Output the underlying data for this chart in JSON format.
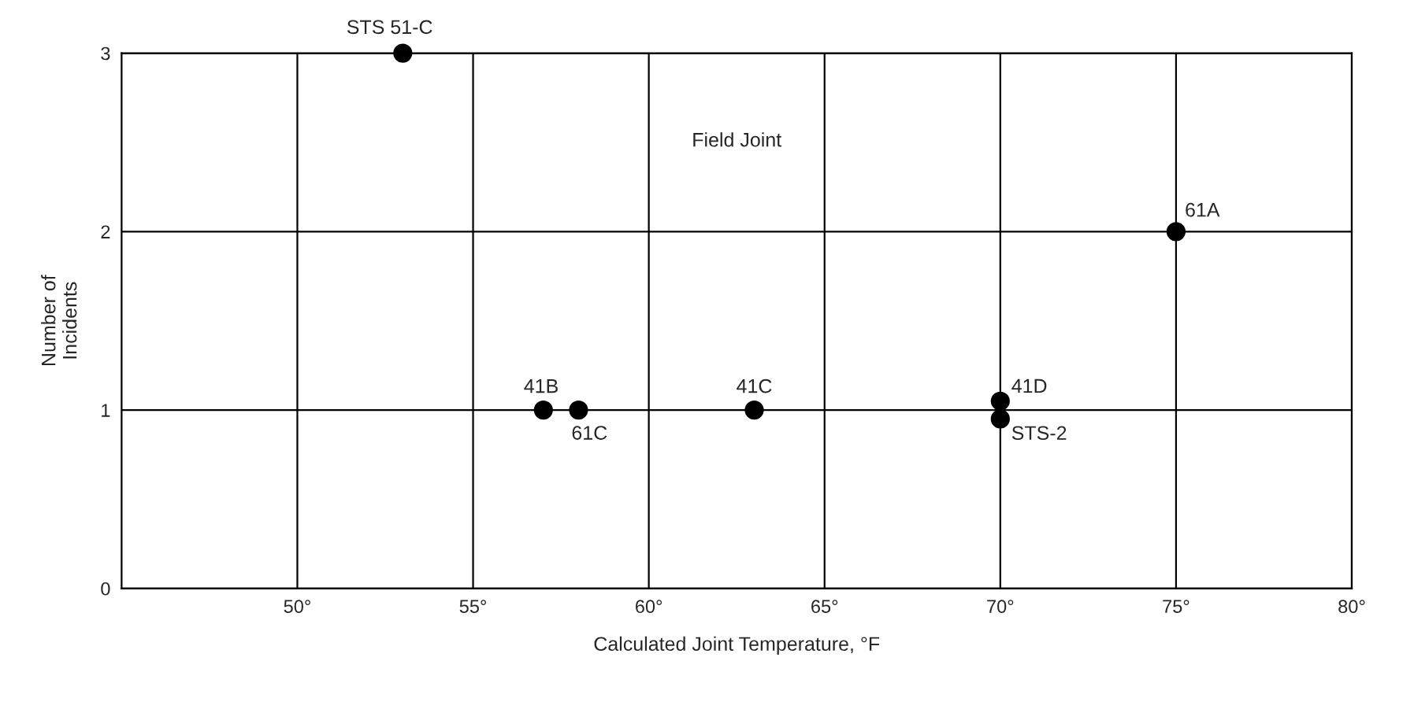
{
  "chart_data": {
    "type": "scatter",
    "xlabel": "Calculated Joint Temperature, °F",
    "ylabel": "Number of\nIncidents",
    "annotations": [
      "Field Joint",
      {
        "text": "STS 51-C",
        "x": 53,
        "y": 3
      },
      {
        "text": "41B",
        "x": 57,
        "y": 1
      },
      {
        "text": "61C",
        "x": 58,
        "y": 1
      },
      {
        "text": "41C",
        "x": 63,
        "y": 1
      },
      {
        "text": "41D",
        "x": 70,
        "y": 1.05
      },
      {
        "text": "STS-2",
        "x": 70,
        "y": 0.95
      },
      {
        "text": "61A",
        "x": 75,
        "y": 2
      }
    ],
    "series": [
      {
        "color": "#000000",
        "x": [
          53,
          57,
          58,
          63,
          70,
          70,
          75
        ],
        "values": [
          3,
          1,
          1,
          1,
          1.05,
          0.95,
          2
        ]
      }
    ],
    "xlim": [
      45,
      80
    ],
    "xticks": [
      {
        "value": 50,
        "label": "50°"
      },
      {
        "value": 55,
        "label": "55°"
      },
      {
        "value": 60,
        "label": "60°"
      },
      {
        "value": 65,
        "label": "65°"
      },
      {
        "value": 70,
        "label": "70°"
      },
      {
        "value": 75,
        "label": "75°"
      },
      {
        "value": 80,
        "label": "80°"
      }
    ],
    "ylim": [
      0,
      3
    ],
    "yticks": [
      0,
      1,
      2,
      3
    ],
    "grid": true,
    "marker": "circle"
  }
}
